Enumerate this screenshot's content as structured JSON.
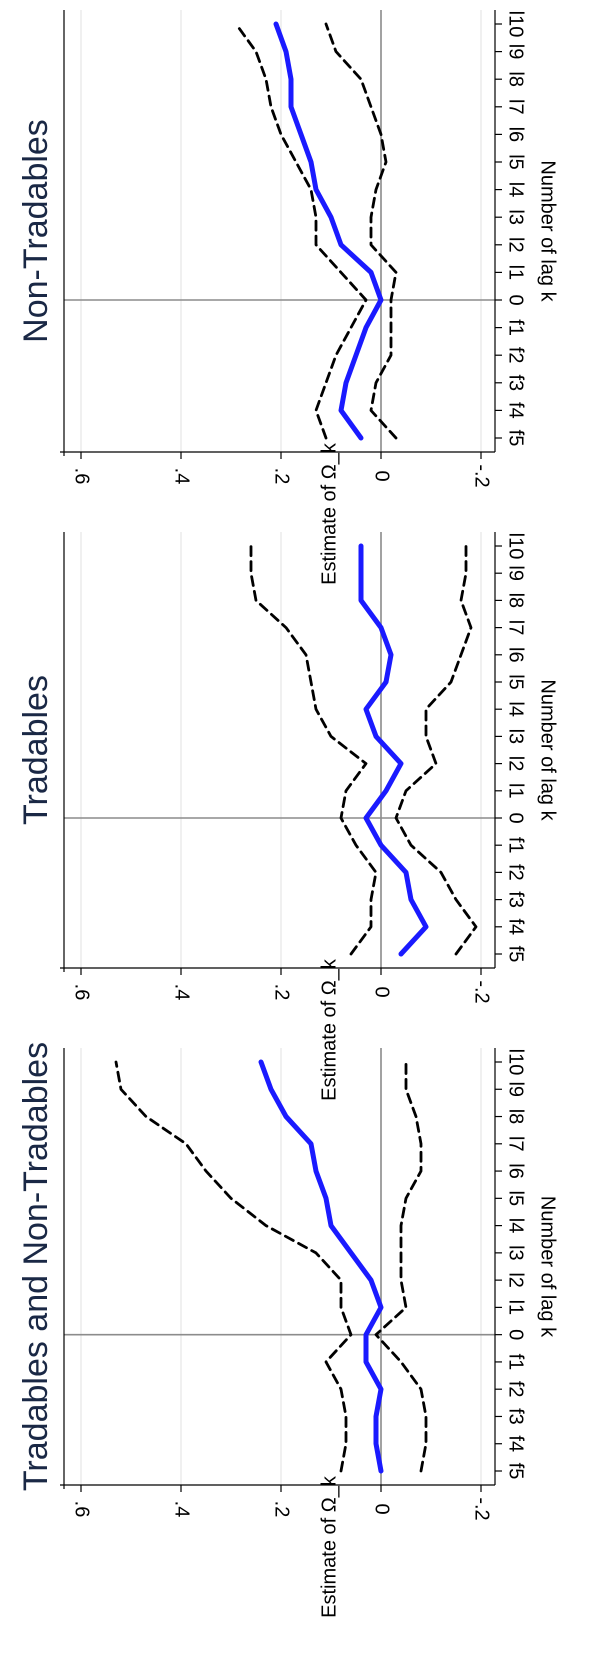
{
  "chart_data": [
    {
      "type": "line",
      "title": "Tradables and Non-Tradables",
      "xlabel": "Number of lag k",
      "ylabel": "Estimate of Ω_k",
      "categories": [
        "f5",
        "f4",
        "f3",
        "f2",
        "f1",
        "0",
        "l1",
        "l2",
        "l3",
        "l4",
        "l5",
        "l6",
        "l7",
        "l8",
        "l9",
        "l10"
      ],
      "yticks": [
        ".6",
        ".4",
        ".2",
        "0",
        "-.2"
      ],
      "ytick_values": [
        0.6,
        0.4,
        0.2,
        0,
        -0.2
      ],
      "ylim": [
        -0.2,
        0.6
      ],
      "series": [
        {
          "role": "estimate",
          "values": [
            0.0,
            0.01,
            0.01,
            0.0,
            0.03,
            0.03,
            0.0,
            0.02,
            0.06,
            0.1,
            0.11,
            0.13,
            0.14,
            0.19,
            0.22,
            0.24
          ]
        },
        {
          "role": "upper",
          "values": [
            0.08,
            0.07,
            0.07,
            0.08,
            0.11,
            0.06,
            0.08,
            0.08,
            0.13,
            0.23,
            0.3,
            0.35,
            0.39,
            0.47,
            0.52,
            0.53
          ]
        },
        {
          "role": "lower",
          "values": [
            -0.08,
            -0.09,
            -0.09,
            -0.08,
            -0.04,
            0.01,
            -0.05,
            -0.04,
            -0.04,
            -0.04,
            -0.05,
            -0.08,
            -0.08,
            -0.07,
            -0.05,
            -0.05
          ]
        }
      ]
    },
    {
      "type": "line",
      "title": "Tradables",
      "xlabel": "Number of lag k",
      "ylabel": "Estimate of Ω_k",
      "categories": [
        "f5",
        "f4",
        "f3",
        "f2",
        "f1",
        "0",
        "l1",
        "l2",
        "l3",
        "l4",
        "l5",
        "l6",
        "l7",
        "l8",
        "l9",
        "l10"
      ],
      "yticks": [
        ".6",
        ".4",
        ".2",
        "0",
        "-.2"
      ],
      "ytick_values": [
        0.6,
        0.4,
        0.2,
        0,
        -0.2
      ],
      "ylim": [
        -0.2,
        0.6
      ],
      "series": [
        {
          "role": "estimate",
          "values": [
            -0.04,
            -0.09,
            -0.06,
            -0.05,
            0.0,
            0.03,
            -0.01,
            -0.04,
            0.01,
            0.03,
            -0.01,
            -0.02,
            0.0,
            0.04,
            0.04,
            0.04
          ]
        },
        {
          "role": "upper",
          "values": [
            0.06,
            0.02,
            0.02,
            0.01,
            0.05,
            0.08,
            0.07,
            0.03,
            0.1,
            0.13,
            0.14,
            0.15,
            0.19,
            0.25,
            0.26,
            0.26
          ]
        },
        {
          "role": "lower",
          "values": [
            -0.15,
            -0.19,
            -0.15,
            -0.12,
            -0.06,
            -0.03,
            -0.05,
            -0.11,
            -0.09,
            -0.09,
            -0.14,
            -0.16,
            -0.18,
            -0.16,
            -0.17,
            -0.17
          ]
        }
      ]
    },
    {
      "type": "line",
      "title": "Non-Tradables",
      "xlabel": "Number of lag k",
      "ylabel": "Estimate of Ω_k",
      "categories": [
        "f5",
        "f4",
        "f3",
        "f2",
        "f1",
        "0",
        "l1",
        "l2",
        "l3",
        "l4",
        "l5",
        "l6",
        "l7",
        "l8",
        "l9",
        "l10"
      ],
      "yticks": [
        ".6",
        ".4",
        ".2",
        "0",
        "-.2"
      ],
      "ytick_values": [
        0.6,
        0.4,
        0.2,
        0,
        -0.2
      ],
      "ylim": [
        -0.2,
        0.6
      ],
      "series": [
        {
          "role": "estimate",
          "values": [
            0.04,
            0.08,
            0.07,
            0.05,
            0.03,
            0.0,
            0.02,
            0.08,
            0.1,
            0.13,
            0.14,
            0.16,
            0.18,
            0.18,
            0.19,
            0.21
          ]
        },
        {
          "role": "upper",
          "values": [
            0.11,
            0.13,
            0.11,
            0.09,
            0.06,
            0.03,
            0.08,
            0.13,
            0.13,
            0.14,
            0.17,
            0.2,
            0.22,
            0.23,
            0.25,
            0.29
          ]
        },
        {
          "role": "lower",
          "values": [
            -0.03,
            0.02,
            0.01,
            -0.02,
            -0.02,
            -0.02,
            -0.03,
            0.02,
            0.02,
            0.01,
            -0.01,
            0.0,
            0.02,
            0.04,
            0.09,
            0.11
          ]
        }
      ]
    }
  ],
  "colors": {
    "estimate": "#1a1aff",
    "bands": "#000000",
    "title": "#1a2845",
    "grid": "#e6e6e6",
    "refline": "#8c8c8c",
    "axis": "#000000"
  }
}
